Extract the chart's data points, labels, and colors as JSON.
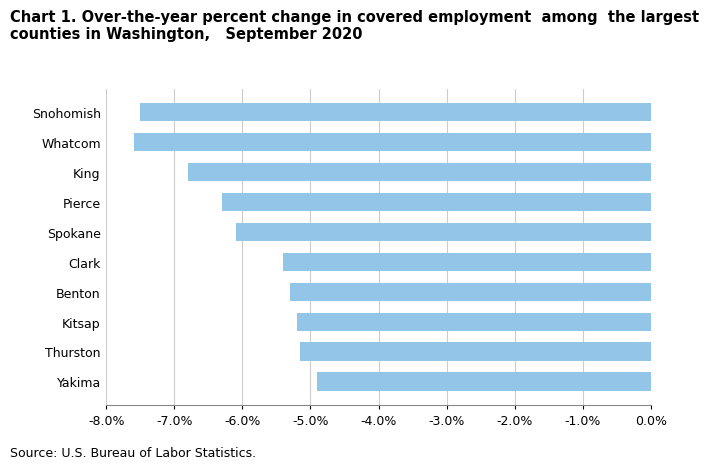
{
  "title_line1": "Chart 1. Over-the-year percent change in covered employment  among  the largest",
  "title_line2": "counties in Washington,   September 2020",
  "categories": [
    "Snohomish",
    "Whatcom",
    "King",
    "Pierce",
    "Spokane",
    "Clark",
    "Benton",
    "Kitsap",
    "Thurston",
    "Yakima"
  ],
  "values": [
    -7.5,
    -7.6,
    -6.8,
    -6.3,
    -6.1,
    -5.4,
    -5.3,
    -5.2,
    -5.15,
    -4.9
  ],
  "bar_color": "#92C5E8",
  "xlim": [
    -8.0,
    0.0
  ],
  "xticks": [
    -8.0,
    -7.0,
    -6.0,
    -5.0,
    -4.0,
    -3.0,
    -2.0,
    -1.0,
    0.0
  ],
  "source": "Source: U.S. Bureau of Labor Statistics.",
  "background_color": "#ffffff",
  "grid_color": "#cccccc",
  "title_fontsize": 10.5,
  "axis_fontsize": 9,
  "source_fontsize": 9
}
